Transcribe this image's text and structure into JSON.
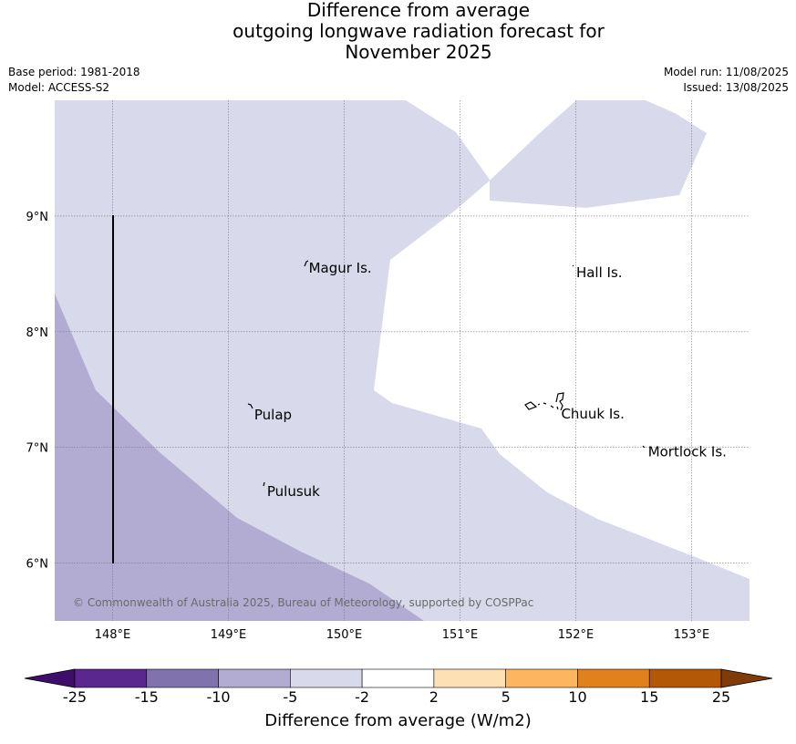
{
  "title": {
    "line1": "Difference from average",
    "line2": "outgoing longwave radiation forecast for",
    "line3": "November 2025"
  },
  "meta": {
    "base_period": "Base period: 1981-2018",
    "model": "Model: ACCESS-S2",
    "model_run": "Model run: 11/08/2025",
    "issued": "Issued: 13/08/2025"
  },
  "map": {
    "lon_range": [
      147.5,
      153.5
    ],
    "lat_range": [
      5.5,
      10.0
    ],
    "lon_ticks": [
      148,
      149,
      150,
      151,
      152,
      153
    ],
    "lon_tick_labels": [
      "148°E",
      "149°E",
      "150°E",
      "151°E",
      "152°E",
      "153°E"
    ],
    "lat_ticks": [
      6,
      7,
      8,
      9
    ],
    "lat_tick_labels": [
      "6°N",
      "7°N",
      "8°N",
      "9°N"
    ],
    "gridlines": true,
    "islands": [
      {
        "name": "Magur Is.",
        "lon": 149.67,
        "lat": 8.55
      },
      {
        "name": "Hall Is.",
        "lon": 151.98,
        "lat": 8.51
      },
      {
        "name": "Pulap",
        "lon": 149.2,
        "lat": 7.28
      },
      {
        "name": "Chuuk Is.",
        "lon": 151.85,
        "lat": 7.29
      },
      {
        "name": "Mortlock Is.",
        "lon": 152.6,
        "lat": 6.96
      },
      {
        "name": "Pulusuk",
        "lon": 149.31,
        "lat": 6.62
      }
    ],
    "copyright": "© Commonwealth of Australia 2025, Bureau of Meteorology, supported by COSPPac",
    "colors": {
      "band_minus5_minus2": "#d8d9ea",
      "band_minus10_minus5": "#b2acd3"
    }
  },
  "colorbar": {
    "title": "Difference from average (W/m2)",
    "boundaries": [
      "-25",
      "-15",
      "-10",
      "-5",
      "-2",
      "2",
      "5",
      "10",
      "15",
      "25"
    ],
    "colors": [
      "#3f0e6b",
      "#59278e",
      "#8073ad",
      "#b2acd3",
      "#d8d9ea",
      "#ffffff",
      "#fee0b5",
      "#fdb55f",
      "#e1811b",
      "#b35806",
      "#7f3b08"
    ]
  }
}
